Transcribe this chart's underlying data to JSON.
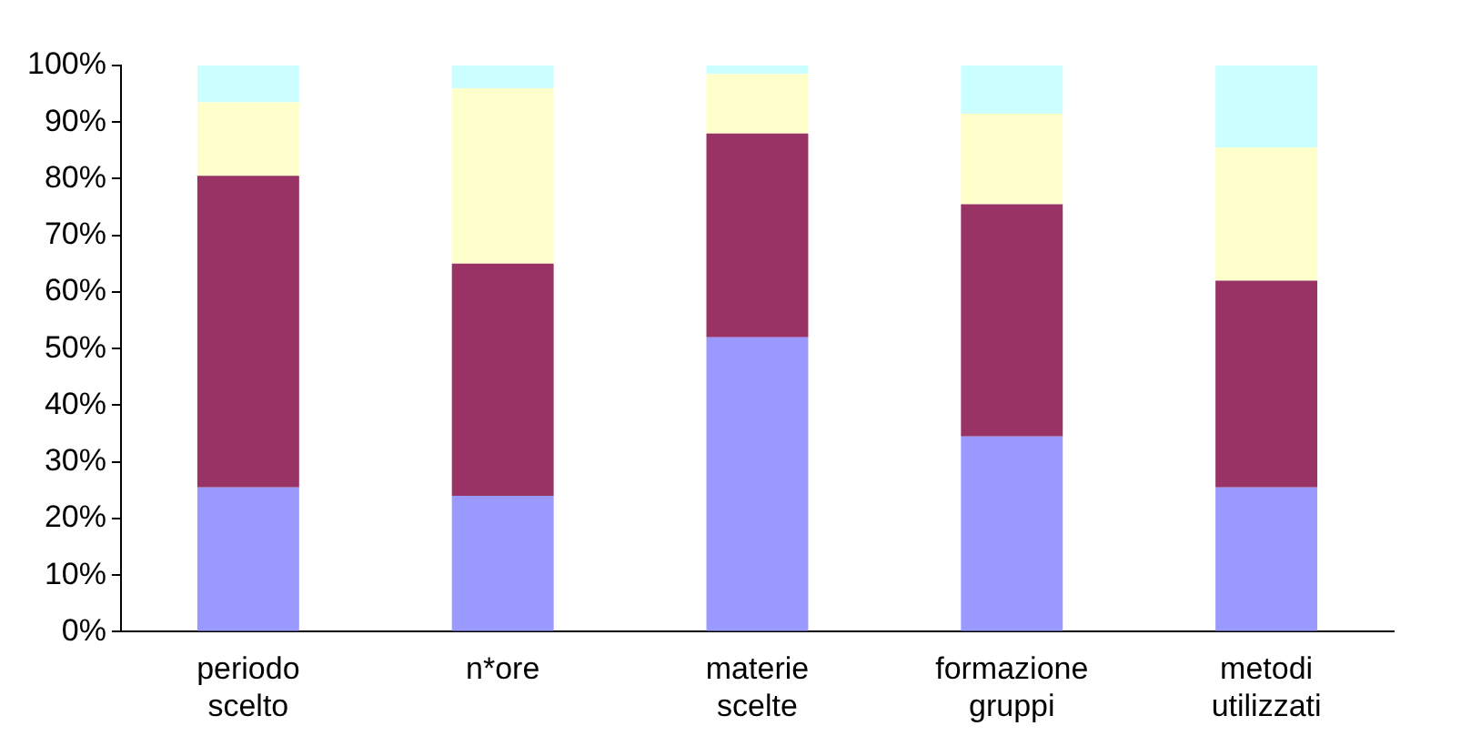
{
  "chart_data": {
    "type": "bar",
    "stacked": true,
    "categories": [
      "periodo scelto",
      "n*ore",
      "materie scelte",
      "formazione gruppi",
      "metodi utilizzati"
    ],
    "series": [
      {
        "color": "#9999ff",
        "values": [
          25.5,
          24,
          52,
          34.5,
          25.5
        ]
      },
      {
        "color": "#993366",
        "values": [
          55,
          41,
          36,
          41,
          36.5
        ]
      },
      {
        "color": "#ffffcc",
        "values": [
          13,
          31,
          10.5,
          16,
          23.5
        ]
      },
      {
        "color": "#ccffff",
        "values": [
          6.5,
          4,
          1.5,
          8.5,
          14.5
        ]
      }
    ],
    "ylim": [
      0,
      100
    ],
    "yticks": [
      {
        "value": 0,
        "label": "0%"
      },
      {
        "value": 10,
        "label": "10%"
      },
      {
        "value": 20,
        "label": "20%"
      },
      {
        "value": 30,
        "label": "30%"
      },
      {
        "value": 40,
        "label": "40%"
      },
      {
        "value": 50,
        "label": "50%"
      },
      {
        "value": 60,
        "label": "60%"
      },
      {
        "value": 70,
        "label": "70%"
      },
      {
        "value": 80,
        "label": "80%"
      },
      {
        "value": 90,
        "label": "90%"
      },
      {
        "value": 100,
        "label": "100%"
      }
    ],
    "grid": false,
    "legend": false
  }
}
